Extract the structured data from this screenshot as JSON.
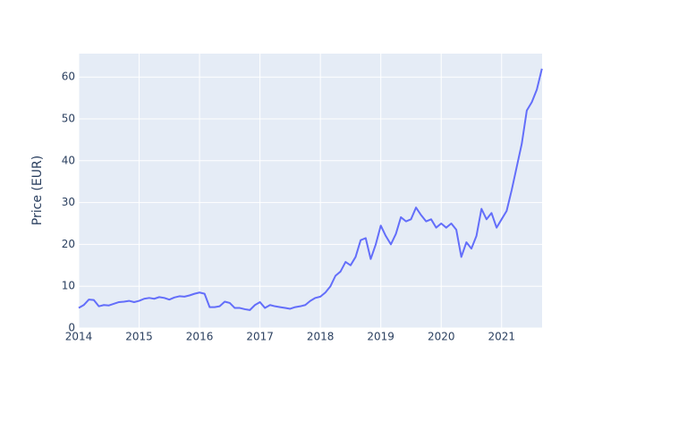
{
  "chart_data": {
    "type": "line",
    "y_label": "Price (EUR)",
    "x": [
      2014,
      2014.083,
      2014.167,
      2014.25,
      2014.333,
      2014.417,
      2014.5,
      2014.583,
      2014.667,
      2014.75,
      2014.833,
      2014.917,
      2015,
      2015.083,
      2015.167,
      2015.25,
      2015.333,
      2015.417,
      2015.5,
      2015.583,
      2015.667,
      2015.75,
      2015.833,
      2015.917,
      2016,
      2016.083,
      2016.167,
      2016.25,
      2016.333,
      2016.417,
      2016.5,
      2016.583,
      2016.667,
      2016.75,
      2016.833,
      2016.917,
      2017,
      2017.083,
      2017.167,
      2017.25,
      2017.333,
      2017.417,
      2017.5,
      2017.583,
      2017.667,
      2017.75,
      2017.833,
      2017.917,
      2018,
      2018.083,
      2018.167,
      2018.25,
      2018.333,
      2018.417,
      2018.5,
      2018.583,
      2018.667,
      2018.75,
      2018.833,
      2018.917,
      2019,
      2019.083,
      2019.167,
      2019.25,
      2019.333,
      2019.417,
      2019.5,
      2019.583,
      2019.667,
      2019.75,
      2019.833,
      2019.917,
      2020,
      2020.083,
      2020.167,
      2020.25,
      2020.333,
      2020.417,
      2020.5,
      2020.583,
      2020.667,
      2020.75,
      2020.833,
      2020.917,
      2021,
      2021.083,
      2021.167,
      2021.25,
      2021.333,
      2021.417,
      2021.5,
      2021.583,
      2021.667
    ],
    "series": [
      {
        "name": "Price",
        "color": "#636efa",
        "values": [
          4.8,
          5.5,
          6.8,
          6.7,
          5.2,
          5.5,
          5.4,
          5.8,
          6.2,
          6.3,
          6.5,
          6.2,
          6.5,
          7.0,
          7.2,
          7.0,
          7.4,
          7.2,
          6.8,
          7.3,
          7.6,
          7.5,
          7.8,
          8.2,
          8.5,
          8.2,
          5.0,
          5.0,
          5.2,
          6.3,
          6.0,
          4.8,
          4.8,
          4.5,
          4.3,
          5.5,
          6.2,
          4.8,
          5.5,
          5.2,
          5.0,
          4.8,
          4.6,
          5.0,
          5.2,
          5.5,
          6.5,
          7.2,
          7.5,
          8.5,
          10,
          12.5,
          13.5,
          15.8,
          15,
          17,
          21,
          21.5,
          16.5,
          20,
          24.5,
          22,
          20,
          22.5,
          26.5,
          25.5,
          26,
          28.8,
          27,
          25.5,
          26,
          24,
          25,
          24,
          25,
          23.5,
          17,
          20.5,
          19,
          22,
          28.5,
          26,
          27.5,
          24,
          26,
          28,
          33,
          38.5,
          44,
          52,
          54,
          57,
          62
        ]
      }
    ],
    "xlim": [
      2014,
      2021.67
    ],
    "xticks": [
      2014,
      2015,
      2016,
      2017,
      2018,
      2019,
      2020,
      2021
    ],
    "ylim": [
      0,
      65.6
    ],
    "yticks": [
      0,
      10,
      20,
      30,
      40,
      50,
      60
    ],
    "grid": true
  }
}
